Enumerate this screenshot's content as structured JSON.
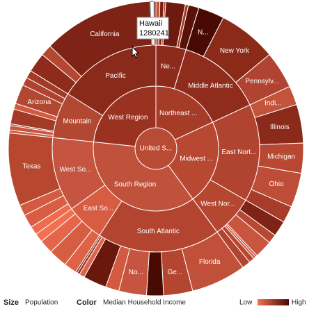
{
  "chart_data": {
    "type": "sunburst",
    "root": {
      "label": "United S...",
      "color": "#b94a34",
      "children": [
        {
          "label": "Northeast ...",
          "color": "#a63b28",
          "children": [
            {
              "label": "Ne...",
              "color": "#8e2a1b",
              "children": [
                {
                  "label": null,
                  "value": 1316456,
                  "color": "#c2553c"
                },
                {
                  "label": null,
                  "value": 1315809,
                  "color": "#7a1f12"
                },
                {
                  "label": null,
                  "value": 621270,
                  "color": "#b14430"
                },
                {
                  "label": null,
                  "value": 6497967,
                  "color": "#6e1a0e"
                },
                {
                  "label": null,
                  "value": 1050788,
                  "color": "#a63b28"
                },
                {
                  "label": null,
                  "value": 3501252,
                  "color": "#5a1208"
                }
              ]
            },
            {
              "label": "Middle Atlantic",
              "color": "#8f2c1c",
              "children": [
                {
                  "label": "N...",
                  "value": 8682661,
                  "color": "#4a0a04"
                },
                {
                  "label": "New York",
                  "value": 19490297,
                  "color": "#8c2a1a"
                },
                {
                  "label": "Pennsylv...",
                  "value": 12448279,
                  "color": "#b04331"
                }
              ]
            }
          ]
        },
        {
          "label": "Midwest ...",
          "color": "#b84832",
          "children": [
            {
              "label": "East Nort...",
              "color": "#b14430",
              "children": [
                {
                  "label": "Indi...",
                  "value": 6376792,
                  "color": "#c4533b"
                },
                {
                  "label": "Illinois",
                  "value": 12901563,
                  "color": "#8a2a1a"
                },
                {
                  "label": "Michigan",
                  "value": 10003422,
                  "color": "#b84832"
                },
                {
                  "label": "Ohio",
                  "value": 11485910,
                  "color": "#bd4d36"
                },
                {
                  "label": null,
                  "value": 5627967,
                  "color": "#a63c29"
                }
              ]
            },
            {
              "label": "West Nor...",
              "color": "#b54731",
              "children": [
                {
                  "label": null,
                  "value": 5220393,
                  "color": "#7e2315"
                },
                {
                  "label": null,
                  "value": 3002555,
                  "color": "#b84832"
                },
                {
                  "label": null,
                  "value": 5911605,
                  "color": "#c8563e"
                },
                {
                  "label": null,
                  "value": 641481,
                  "color": "#bd4d36"
                },
                {
                  "label": null,
                  "value": 804194,
                  "color": "#d0583f"
                },
                {
                  "label": null,
                  "value": 1783432,
                  "color": "#b54731"
                },
                {
                  "label": null,
                  "value": 2802134,
                  "color": "#b14430"
                }
              ]
            }
          ]
        },
        {
          "label": "South Region",
          "color": "#c0513a",
          "children": [
            {
              "label": "South Atlantic",
              "color": "#b34530",
              "children": [
                {
                  "label": "Florida",
                  "value": 18328340,
                  "color": "#c0503a"
                },
                {
                  "label": "Ge...",
                  "value": 9685744,
                  "color": "#b44631"
                },
                {
                  "label": null,
                  "value": 5633597,
                  "color": "#4a0a04"
                },
                {
                  "label": "No...",
                  "value": 9222414,
                  "color": "#c55540"
                },
                {
                  "label": null,
                  "value": 4479800,
                  "color": "#d15a40"
                },
                {
                  "label": null,
                  "value": 7769089,
                  "color": "#6b180c"
                },
                {
                  "label": null,
                  "value": 1814468,
                  "color": "#e0644a"
                },
                {
                  "label": null,
                  "value": 873092,
                  "color": "#9a3222"
                },
                {
                  "label": null,
                  "value": 591833,
                  "color": "#7a1f12"
                }
              ]
            },
            {
              "label": "East So...",
              "color": "#d65c42",
              "children": [
                {
                  "label": null,
                  "value": 4269245,
                  "color": "#e06245"
                },
                {
                  "label": null,
                  "value": 6214888,
                  "color": "#d65c42"
                },
                {
                  "label": null,
                  "value": 4661900,
                  "color": "#e4664a"
                },
                {
                  "label": null,
                  "value": 2938618,
                  "color": "#f0704f"
                }
              ]
            },
            {
              "label": "West So...",
              "color": "#c55540",
              "children": [
                {
                  "label": null,
                  "value": 2855390,
                  "color": "#ee6c4d"
                },
                {
                  "label": null,
                  "value": 4410796,
                  "color": "#d85e43"
                },
                {
                  "label": null,
                  "value": 3642361,
                  "color": "#d45a41"
                },
                {
                  "label": "Texas",
                  "value": 24326974,
                  "color": "#b8472f"
                }
              ]
            }
          ]
        },
        {
          "label": "West Region",
          "color": "#9a3222",
          "children": [
            {
              "label": "Mountain",
              "color": "#b34832",
              "children": [
                {
                  "label": null,
                  "value": 967440,
                  "color": "#cf5a40"
                },
                {
                  "label": null,
                  "value": 1523816,
                  "color": "#c9573e"
                },
                {
                  "label": null,
                  "value": 532668,
                  "color": "#a63c29"
                },
                {
                  "label": null,
                  "value": 4939456,
                  "color": "#a23a27"
                },
                {
                  "label": null,
                  "value": 1984356,
                  "color": "#d5593f"
                },
                {
                  "label": "Arizona",
                  "value": 6500180,
                  "color": "#b34832"
                },
                {
                  "label": null,
                  "value": 2736424,
                  "color": "#b04330"
                },
                {
                  "label": null,
                  "value": 2600167,
                  "color": "#a23a27"
                }
              ]
            },
            {
              "label": "Pacific",
              "color": "#8a2a1a",
              "children": [
                {
                  "label": null,
                  "value": 6549224,
                  "color": "#8e2b1b"
                },
                {
                  "label": null,
                  "value": 3790060,
                  "color": "#b54731"
                },
                {
                  "label": "California",
                  "value": 36756666,
                  "color": "#7e2315"
                },
                {
                  "label": null,
                  "value": 1280241,
                  "color": "#ffffff",
                  "hovered": true
                },
                {
                  "label": null,
                  "value": 686293,
                  "color": "#5a1208"
                }
              ]
            }
          ]
        }
      ]
    },
    "tooltip": {
      "title": "Hawaii"
    },
    "footer": {
      "size_title": "Size",
      "size_value": "Population",
      "color_title": "Color",
      "color_value": "Median Household Income",
      "low": "Low",
      "high": "High",
      "low_color": "#f0704f",
      "high_color": "#4a0a04"
    }
  }
}
